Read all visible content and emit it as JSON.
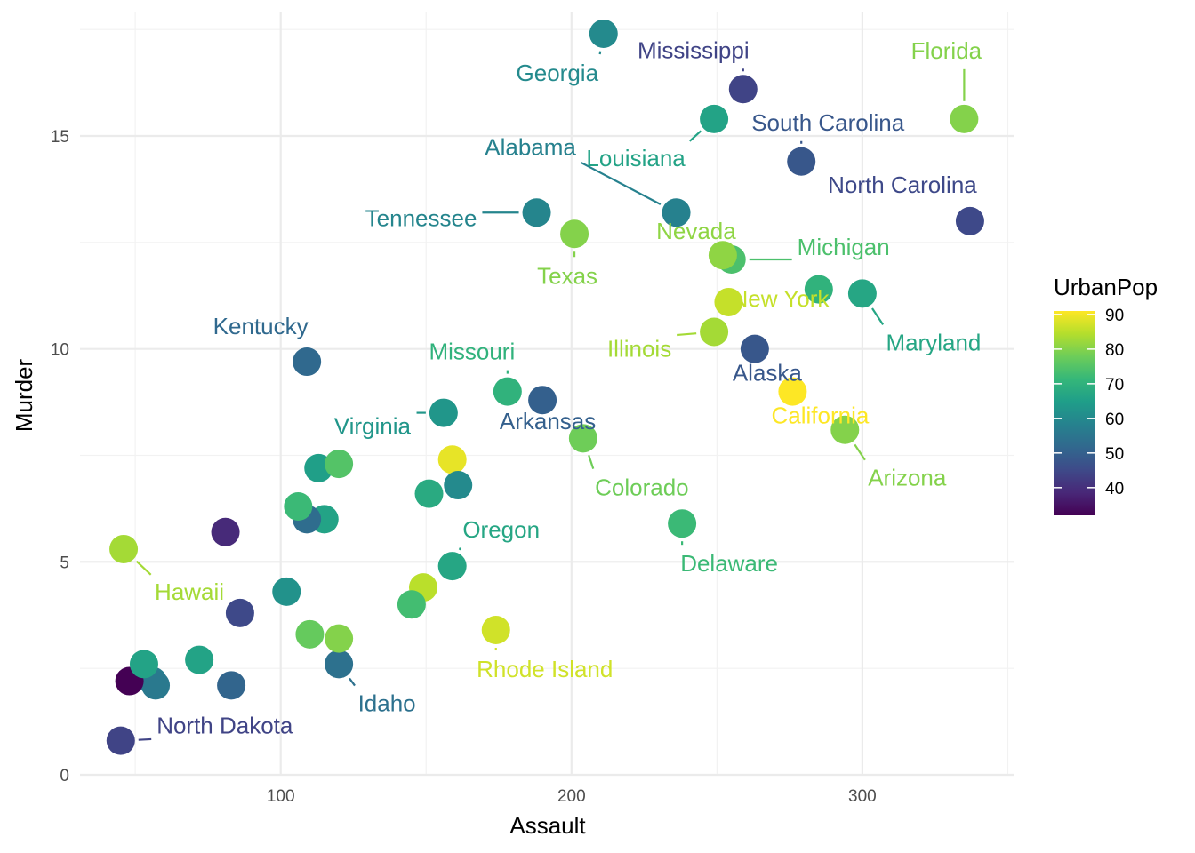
{
  "chart_data": {
    "type": "scatter",
    "title": "",
    "xlabel": "Assault",
    "ylabel": "Murder",
    "xlim": [
      31,
      352
    ],
    "ylim": [
      0,
      17.9
    ],
    "x_ticks": [
      100,
      200,
      300
    ],
    "y_ticks": [
      0,
      5,
      10,
      15
    ],
    "grid": true,
    "color_variable": "UrbanPop",
    "color_scale": "viridis",
    "color_range": [
      32,
      91
    ],
    "legend_ticks": [
      40,
      50,
      60,
      70,
      80,
      90
    ],
    "legend_position": "right",
    "points": [
      {
        "x": 236,
        "y": 13.2,
        "urbanpop": 58,
        "label": "Alabama"
      },
      {
        "x": 263,
        "y": 10.0,
        "urbanpop": 48,
        "label": "Alaska"
      },
      {
        "x": 294,
        "y": 8.1,
        "urbanpop": 80,
        "label": "Arizona"
      },
      {
        "x": 190,
        "y": 8.8,
        "urbanpop": 50,
        "label": "Arkansas"
      },
      {
        "x": 276,
        "y": 9.0,
        "urbanpop": 91,
        "label": "California"
      },
      {
        "x": 204,
        "y": 7.9,
        "urbanpop": 78,
        "label": "Colorado"
      },
      {
        "x": 110,
        "y": 3.3,
        "urbanpop": 77,
        "label": ""
      },
      {
        "x": 238,
        "y": 5.9,
        "urbanpop": 72,
        "label": "Delaware"
      },
      {
        "x": 335,
        "y": 15.4,
        "urbanpop": 80,
        "label": "Florida"
      },
      {
        "x": 211,
        "y": 17.4,
        "urbanpop": 60,
        "label": "Georgia"
      },
      {
        "x": 46,
        "y": 5.3,
        "urbanpop": 83,
        "label": "Hawaii"
      },
      {
        "x": 120,
        "y": 2.6,
        "urbanpop": 54,
        "label": "Idaho"
      },
      {
        "x": 249,
        "y": 10.4,
        "urbanpop": 83,
        "label": "Illinois"
      },
      {
        "x": 113,
        "y": 7.2,
        "urbanpop": 65,
        "label": ""
      },
      {
        "x": 56,
        "y": 2.2,
        "urbanpop": 57,
        "label": ""
      },
      {
        "x": 115,
        "y": 6.0,
        "urbanpop": 66,
        "label": ""
      },
      {
        "x": 109,
        "y": 9.7,
        "urbanpop": 52,
        "label": "Kentucky"
      },
      {
        "x": 249,
        "y": 15.4,
        "urbanpop": 66,
        "label": "Louisiana"
      },
      {
        "x": 83,
        "y": 2.1,
        "urbanpop": 51,
        "label": ""
      },
      {
        "x": 300,
        "y": 11.3,
        "urbanpop": 67,
        "label": "Maryland"
      },
      {
        "x": 149,
        "y": 4.4,
        "urbanpop": 85,
        "label": ""
      },
      {
        "x": 255,
        "y": 12.1,
        "urbanpop": 74,
        "label": "Michigan"
      },
      {
        "x": 72,
        "y": 2.7,
        "urbanpop": 66,
        "label": ""
      },
      {
        "x": 259,
        "y": 16.1,
        "urbanpop": 44,
        "label": "Mississippi"
      },
      {
        "x": 178,
        "y": 9.0,
        "urbanpop": 70,
        "label": "Missouri"
      },
      {
        "x": 109,
        "y": 6.0,
        "urbanpop": 53,
        "label": ""
      },
      {
        "x": 102,
        "y": 4.3,
        "urbanpop": 62,
        "label": ""
      },
      {
        "x": 252,
        "y": 12.2,
        "urbanpop": 81,
        "label": "Nevada"
      },
      {
        "x": 57,
        "y": 2.1,
        "urbanpop": 56,
        "label": ""
      },
      {
        "x": 159,
        "y": 7.4,
        "urbanpop": 89,
        "label": ""
      },
      {
        "x": 285,
        "y": 11.4,
        "urbanpop": 70,
        "label": ""
      },
      {
        "x": 254,
        "y": 11.1,
        "urbanpop": 86,
        "label": "New York"
      },
      {
        "x": 337,
        "y": 13.0,
        "urbanpop": 45,
        "label": "North Carolina"
      },
      {
        "x": 45,
        "y": 0.8,
        "urbanpop": 44,
        "label": "North Dakota"
      },
      {
        "x": 120,
        "y": 7.3,
        "urbanpop": 75,
        "label": ""
      },
      {
        "x": 151,
        "y": 6.6,
        "urbanpop": 68,
        "label": ""
      },
      {
        "x": 159,
        "y": 4.9,
        "urbanpop": 67,
        "label": "Oregon"
      },
      {
        "x": 106,
        "y": 6.3,
        "urbanpop": 72,
        "label": ""
      },
      {
        "x": 174,
        "y": 3.4,
        "urbanpop": 87,
        "label": "Rhode Island"
      },
      {
        "x": 279,
        "y": 14.4,
        "urbanpop": 48,
        "label": "South Carolina"
      },
      {
        "x": 86,
        "y": 3.8,
        "urbanpop": 45,
        "label": ""
      },
      {
        "x": 188,
        "y": 13.2,
        "urbanpop": 59,
        "label": "Tennessee"
      },
      {
        "x": 201,
        "y": 12.7,
        "urbanpop": 80,
        "label": "Texas"
      },
      {
        "x": 120,
        "y": 3.2,
        "urbanpop": 80,
        "label": ""
      },
      {
        "x": 48,
        "y": 2.2,
        "urbanpop": 32,
        "label": ""
      },
      {
        "x": 156,
        "y": 8.5,
        "urbanpop": 63,
        "label": "Virginia"
      },
      {
        "x": 145,
        "y": 4.0,
        "urbanpop": 73,
        "label": ""
      },
      {
        "x": 81,
        "y": 5.7,
        "urbanpop": 39,
        "label": ""
      },
      {
        "x": 53,
        "y": 2.6,
        "urbanpop": 66,
        "label": ""
      },
      {
        "x": 161,
        "y": 6.8,
        "urbanpop": 60,
        "label": ""
      }
    ]
  }
}
